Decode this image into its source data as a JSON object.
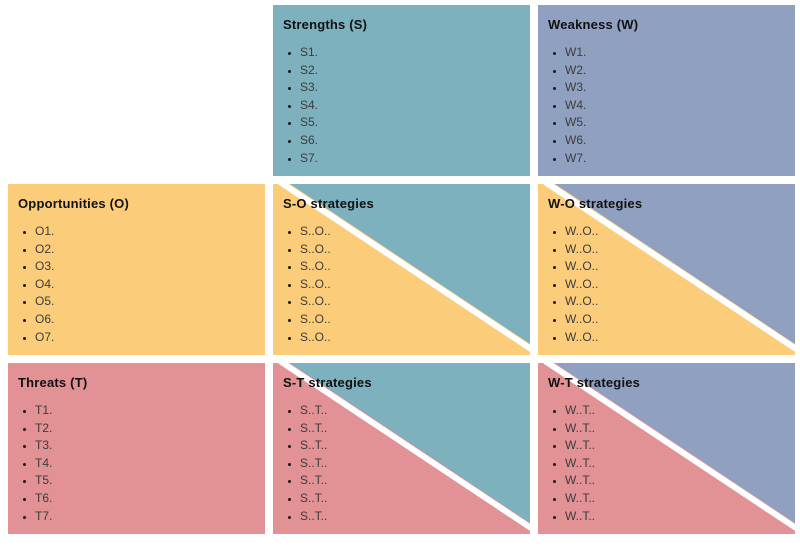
{
  "colors": {
    "strengths": "#7EB1BE",
    "weakness": "#90A0C1",
    "opportunities": "#FBCD7A",
    "threats": "#E29195",
    "divider": "#FFFFFF",
    "title_text": "#111111",
    "item_text": "#3C3C3C"
  },
  "cells": {
    "strengths": {
      "title": "Strengths (S)",
      "items": [
        "S1.",
        "S2.",
        "S3.",
        "S4.",
        "S5.",
        "S6.",
        "S7."
      ]
    },
    "weakness": {
      "title": "Weakness (W)",
      "items": [
        "W1.",
        "W2.",
        "W3.",
        "W4.",
        "W5.",
        "W6.",
        "W7."
      ]
    },
    "opportunities": {
      "title": "Opportunities (O)",
      "items": [
        "O1.",
        "O2.",
        "O3.",
        "O4.",
        "O5.",
        "O6.",
        "O7."
      ]
    },
    "threats": {
      "title": "Threats (T)",
      "items": [
        "T1.",
        "T2.",
        "T3.",
        "T4.",
        "T5.",
        "T6.",
        "T7."
      ]
    },
    "so": {
      "title": "S-O strategies",
      "items": [
        "S..O..",
        "S..O..",
        "S..O..",
        "S..O..",
        "S..O..",
        "S..O..",
        "S..O.."
      ]
    },
    "wo": {
      "title": "W-O strategies",
      "items": [
        "W..O..",
        "W..O..",
        "W..O..",
        "W..O..",
        "W..O..",
        "W..O..",
        "W..O.."
      ]
    },
    "st": {
      "title": "S-T strategies",
      "items": [
        "S..T..",
        "S..T..",
        "S..T..",
        "S..T..",
        "S..T..",
        "S..T..",
        "S..T.."
      ]
    },
    "wt": {
      "title": "W-T strategies",
      "items": [
        "W..T..",
        "W..T..",
        "W..T..",
        "W..T..",
        "W..T..",
        "W..T..",
        "W..T.."
      ]
    }
  }
}
